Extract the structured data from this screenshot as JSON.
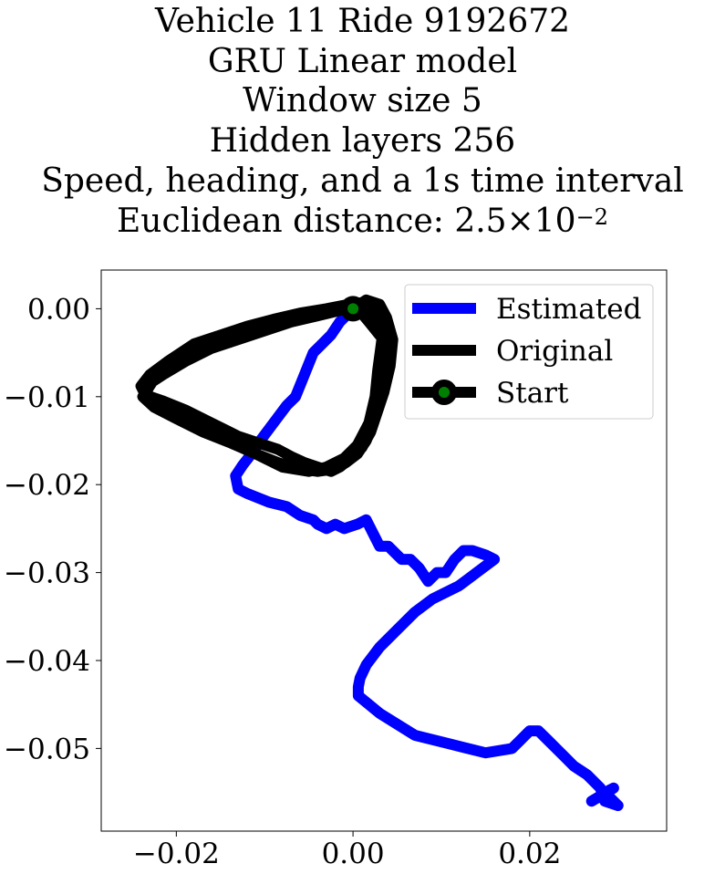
{
  "title_lines": [
    "Vehicle 11 Ride 9192672",
    "GRU Linear model",
    "Window size 5",
    "Hidden layers 256",
    "Speed, heading, and a 1s time interval"
  ],
  "distance": {
    "prefix": "Euclidean distance: ",
    "mantissa": "2.5",
    "times": "×",
    "base": "10",
    "exponent": "−2"
  },
  "colors": {
    "estimated": "#0000ff",
    "original": "#000000",
    "start_marker_fill": "#008000",
    "start_marker_edge": "#000000"
  },
  "chart_data": {
    "type": "line",
    "xlim": [
      -0.0285,
      0.0355
    ],
    "ylim": [
      -0.0594,
      0.0044
    ],
    "xticks": [
      -0.02,
      0.0,
      0.02
    ],
    "xtick_labels": [
      "−0.02",
      "0.00",
      "0.02"
    ],
    "yticks": [
      0.0,
      -0.01,
      -0.02,
      -0.03,
      -0.04,
      -0.05
    ],
    "ytick_labels": [
      "0.00",
      "−0.01",
      "−0.02",
      "−0.03",
      "−0.04",
      "−0.05"
    ],
    "grid": false,
    "legend_position": "top-right",
    "series": [
      {
        "name": "Estimated",
        "x": [
          0.0,
          -0.0015,
          -0.0025,
          -0.0035,
          -0.0045,
          -0.0055,
          -0.0065,
          -0.0075,
          -0.009,
          -0.0105,
          -0.0115,
          -0.0125,
          -0.0133,
          -0.013,
          -0.012,
          -0.0095,
          -0.0075,
          -0.006,
          -0.0045,
          -0.004,
          -0.003,
          -0.002,
          -0.001,
          0.0005,
          0.0015,
          0.0025,
          0.003,
          0.004,
          0.0055,
          0.0065,
          0.0075,
          0.0085,
          0.0095,
          0.0105,
          0.0115,
          0.0125,
          0.0135,
          0.015,
          0.016,
          0.014,
          0.012,
          0.009,
          0.007,
          0.005,
          0.003,
          0.0015,
          0.0008,
          0.0006,
          0.0006,
          0.003,
          0.007,
          0.011,
          0.015,
          0.018,
          0.019,
          0.02,
          0.021,
          0.022,
          0.023,
          0.024,
          0.025,
          0.0265,
          0.028,
          0.0285,
          0.03,
          0.0285,
          0.0295,
          0.027
        ],
        "y": [
          0.0,
          -0.0015,
          -0.003,
          -0.004,
          -0.005,
          -0.0075,
          -0.01,
          -0.011,
          -0.013,
          -0.015,
          -0.0165,
          -0.0178,
          -0.019,
          -0.0205,
          -0.021,
          -0.022,
          -0.0225,
          -0.0235,
          -0.024,
          -0.0245,
          -0.025,
          -0.0245,
          -0.025,
          -0.0245,
          -0.024,
          -0.026,
          -0.027,
          -0.027,
          -0.0285,
          -0.0285,
          -0.0295,
          -0.031,
          -0.03,
          -0.03,
          -0.0285,
          -0.0275,
          -0.0275,
          -0.028,
          -0.0285,
          -0.03,
          -0.0315,
          -0.033,
          -0.0345,
          -0.0365,
          -0.0385,
          -0.0405,
          -0.042,
          -0.043,
          -0.044,
          -0.046,
          -0.0485,
          -0.0495,
          -0.0505,
          -0.05,
          -0.049,
          -0.048,
          -0.048,
          -0.049,
          -0.05,
          -0.051,
          -0.052,
          -0.053,
          -0.0545,
          -0.056,
          -0.0565,
          -0.055,
          -0.0545,
          -0.056
        ]
      },
      {
        "name": "Original",
        "x": [
          0.0,
          0.0015,
          0.003,
          0.0035,
          0.0032,
          0.0028,
          0.0025,
          0.0018,
          0.0005,
          -0.001,
          -0.003,
          -0.005,
          -0.008,
          -0.011,
          -0.014,
          -0.017,
          -0.02,
          -0.022,
          -0.0235,
          -0.023,
          -0.0215,
          -0.019,
          -0.016,
          -0.013,
          -0.01,
          -0.007,
          -0.004,
          -0.0015,
          0.0,
          0.0015,
          0.003,
          0.0038,
          0.004,
          0.0038,
          0.003,
          0.002,
          0.001,
          -0.0005,
          -0.0015,
          -0.0025,
          -0.004,
          -0.0055,
          -0.007,
          -0.0085,
          -0.01,
          -0.013,
          -0.016,
          -0.019,
          -0.0215,
          -0.0235,
          -0.024,
          -0.023,
          -0.021,
          -0.018,
          -0.015,
          -0.012,
          -0.009,
          -0.006,
          -0.003,
          -0.0005,
          0.0015,
          0.003,
          0.0038,
          0.0045,
          0.0042,
          0.0035,
          0.0025,
          0.0015,
          0.0005,
          -0.0008,
          -0.002,
          -0.004,
          -0.006,
          -0.0085,
          -0.011,
          -0.014,
          -0.017,
          -0.02,
          -0.0225,
          -0.0238,
          -0.0225,
          -0.02,
          -0.017,
          -0.014,
          -0.011,
          -0.0085,
          -0.006,
          -0.0035,
          -0.0015,
          0.0005,
          0.0018,
          0.0028,
          0.0034,
          0.003,
          0.0018,
          0.0008,
          0.0
        ],
        "y": [
          0.0,
          0.001,
          0.0005,
          -0.0015,
          -0.004,
          -0.007,
          -0.01,
          -0.013,
          -0.0155,
          -0.017,
          -0.018,
          -0.0185,
          -0.018,
          -0.0165,
          -0.015,
          -0.0135,
          -0.012,
          -0.011,
          -0.01,
          -0.0085,
          -0.0075,
          -0.006,
          -0.0045,
          -0.0035,
          -0.0025,
          -0.0015,
          -0.0008,
          -0.0002,
          0.0002,
          0.0005,
          0.0,
          -0.002,
          -0.005,
          -0.008,
          -0.011,
          -0.014,
          -0.0158,
          -0.0172,
          -0.018,
          -0.0185,
          -0.018,
          -0.0175,
          -0.0168,
          -0.016,
          -0.0155,
          -0.0145,
          -0.013,
          -0.0115,
          -0.0105,
          -0.0098,
          -0.0088,
          -0.0075,
          -0.006,
          -0.004,
          -0.003,
          -0.002,
          -0.0012,
          -0.0005,
          0.0,
          0.0005,
          0.0008,
          0.0005,
          -0.001,
          -0.0035,
          -0.0065,
          -0.0095,
          -0.0125,
          -0.015,
          -0.0165,
          -0.0175,
          -0.0182,
          -0.0185,
          -0.0182,
          -0.0175,
          -0.0165,
          -0.0152,
          -0.014,
          -0.0125,
          -0.0112,
          -0.01,
          -0.008,
          -0.006,
          -0.0045,
          -0.0035,
          -0.0025,
          -0.0018,
          -0.001,
          -0.0004,
          0.0,
          0.0003,
          0.0001,
          -0.001,
          -0.0025,
          -0.003,
          -0.0015,
          -0.0003,
          0.0
        ]
      },
      {
        "name": "Start",
        "x": [
          0.0
        ],
        "y": [
          0.0
        ]
      }
    ]
  }
}
